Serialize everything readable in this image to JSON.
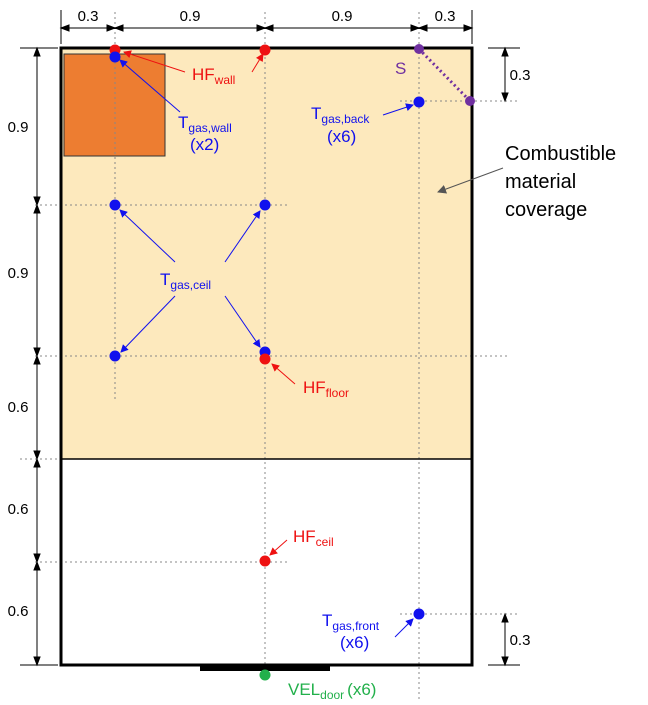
{
  "dimensions": {
    "top": [
      "0.3",
      "0.9",
      "0.9",
      "0.3"
    ],
    "left": [
      "0.9",
      "0.9",
      "0.6",
      "0.6",
      "0.6"
    ],
    "right_top": "0.3",
    "right_bottom": "0.3"
  },
  "labels": {
    "hf_wall": {
      "main": "HF",
      "sub": "wall"
    },
    "hf_floor": {
      "main": "HF",
      "sub": "floor"
    },
    "hf_ceil": {
      "main": "HF",
      "sub": "ceil"
    },
    "t_gas_wall": {
      "main": "T",
      "sub": "gas,wall",
      "count": "(x2)"
    },
    "t_gas_ceil": {
      "main": "T",
      "sub": "gas,ceil"
    },
    "t_gas_back": {
      "main": "T",
      "sub": "gas,back",
      "count": "(x6)"
    },
    "t_gas_front": {
      "main": "T",
      "sub": "gas,front",
      "count": "(x6)"
    },
    "vel_door": {
      "main": "VEL",
      "sub": "door",
      "count": "(x6)"
    },
    "s": "S",
    "coverage": [
      "Combustible",
      "material",
      "coverage"
    ]
  },
  "colors": {
    "combustible_fill": "#fde9bd",
    "block_fill": "#ed7d31",
    "red": "#ee1111",
    "blue": "#1111ee",
    "purple": "#7030a0",
    "green": "#22b04b",
    "guide": "#888888"
  }
}
